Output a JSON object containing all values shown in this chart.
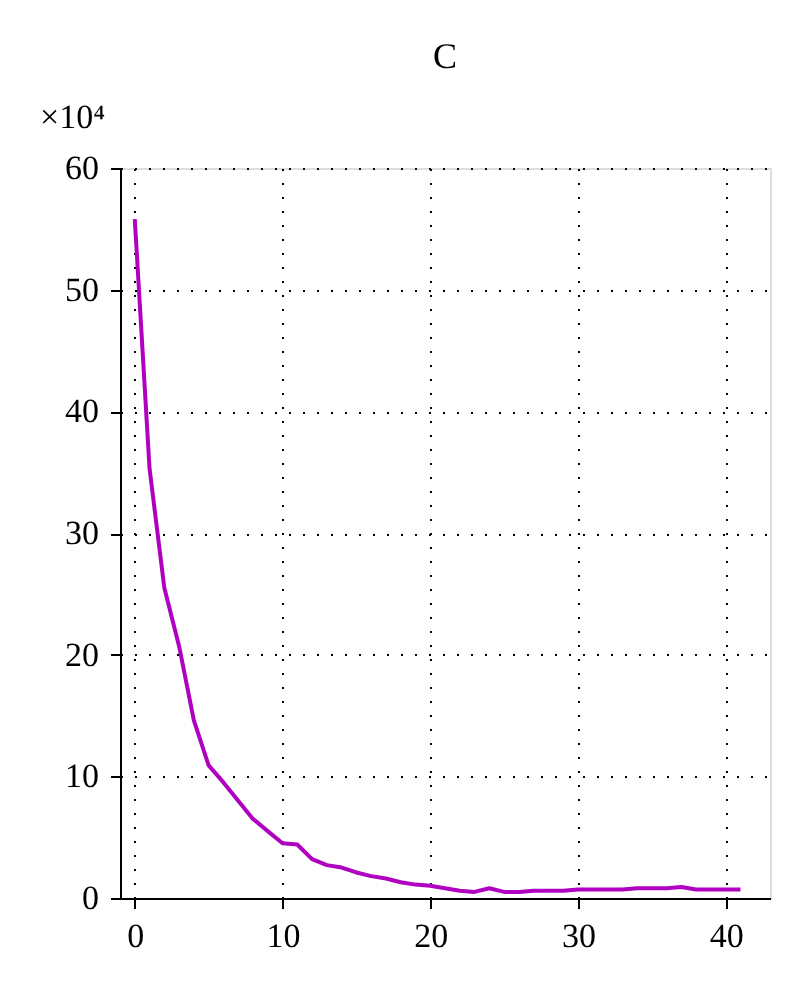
{
  "chart_data": {
    "type": "line",
    "title": "C",
    "annotations": [
      "×10⁴"
    ],
    "x": [
      0,
      1,
      2,
      3,
      4,
      5,
      6,
      7,
      8,
      9,
      10,
      11,
      12,
      13,
      14,
      15,
      16,
      17,
      18,
      19,
      20,
      21,
      22,
      23,
      24,
      25,
      26,
      27,
      28,
      29,
      30,
      31,
      32,
      33,
      34,
      35,
      36,
      37,
      38,
      39,
      40,
      41
    ],
    "series": [
      {
        "color": "#b000c0",
        "values": [
          55.8,
          35.3,
          25.5,
          20.7,
          14.6,
          10.9,
          9.5,
          8.0,
          6.5,
          5.5,
          4.5,
          4.4,
          3.2,
          2.7,
          2.5,
          2.1,
          1.8,
          1.6,
          1.3,
          1.1,
          1.0,
          0.8,
          0.6,
          0.5,
          0.8,
          0.5,
          0.5,
          0.6,
          0.6,
          0.6,
          0.7,
          0.7,
          0.7,
          0.7,
          0.8,
          0.8,
          0.8,
          0.9,
          0.7,
          0.7,
          0.7,
          0.7
        ]
      }
    ],
    "xlim": [
      -1,
      43
    ],
    "xticks": [
      0,
      10,
      20,
      30,
      40
    ],
    "ylim": [
      0,
      60
    ],
    "yticks": [
      0,
      10,
      20,
      30,
      40,
      50,
      60
    ],
    "grid": true,
    "line_style": "solid",
    "marker": "none"
  }
}
